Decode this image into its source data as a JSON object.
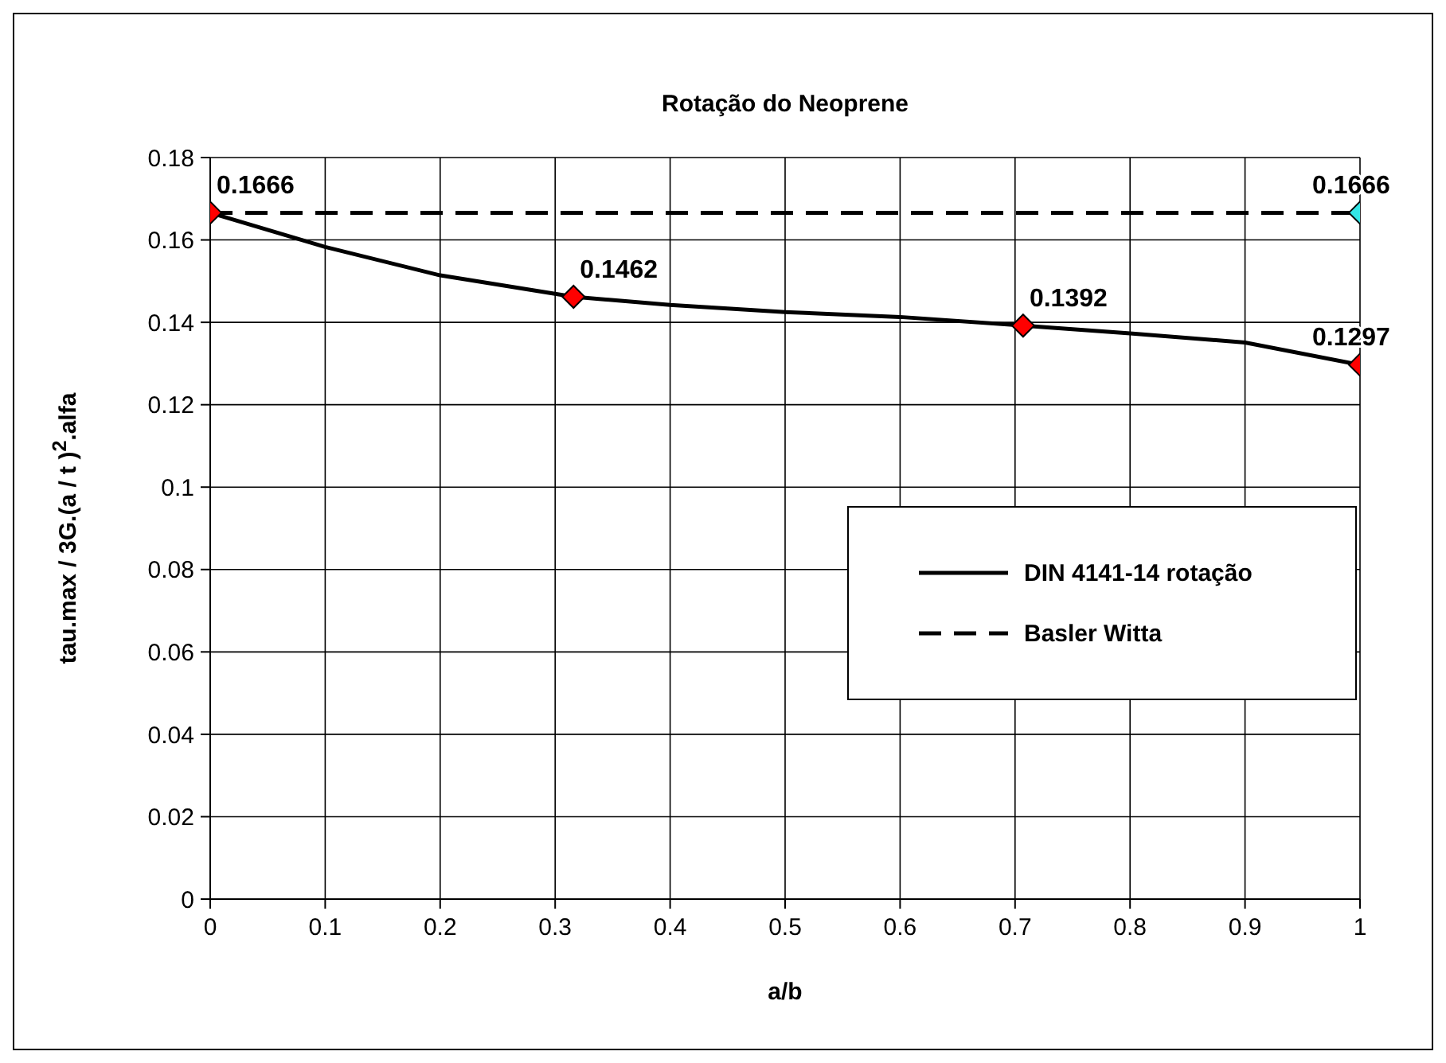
{
  "chart_data": {
    "type": "line",
    "title": "Rotação do Neoprene",
    "xlabel": "a/b",
    "ylabel": "tau.max / 3G.(a / t )$^{2}$.alfa",
    "xlim": [
      0,
      1
    ],
    "xticks": [
      0,
      0.1,
      0.2,
      0.3,
      0.4,
      0.5,
      0.6,
      0.7,
      0.8,
      0.9,
      1
    ],
    "ylim": [
      0,
      0.18
    ],
    "yticks": [
      0,
      0.02,
      0.04,
      0.06,
      0.08,
      0.1,
      0.12,
      0.14,
      0.16,
      0.18
    ],
    "grid": true,
    "legend": "right",
    "series": [
      {
        "name": "DIN 4141-14 rotação",
        "color": "#000000",
        "line_style": "solid",
        "marker": "none",
        "x": [
          0,
          0.1,
          0.2,
          0.316,
          0.4,
          0.5,
          0.6,
          0.707,
          0.8,
          0.9,
          1
        ],
        "values": [
          0.1666,
          0.1583,
          0.1514,
          0.1462,
          0.1442,
          0.1425,
          0.1413,
          0.1392,
          0.1373,
          0.1351,
          0.1297
        ]
      },
      {
        "name": "Basler Witta",
        "color": "#000000",
        "line_style": "dashed",
        "marker": "none",
        "x": [
          0,
          1
        ],
        "values": [
          0.1666,
          0.1666
        ]
      },
      {
        "type": "scatter",
        "color": "#ff0000",
        "marker": "diamond",
        "x": [
          0,
          0.316,
          0.707,
          1
        ],
        "values": [
          0.1666,
          0.1462,
          0.1392,
          0.1297
        ],
        "value_labels": [
          "0.1666",
          "0.1462",
          "0.1392",
          "0.1297"
        ]
      },
      {
        "type": "scatter",
        "color": "#33e6e6",
        "marker": "diamond",
        "x": [
          1
        ],
        "values": [
          0.1666
        ],
        "value_labels": [
          "0.1666"
        ]
      }
    ]
  }
}
